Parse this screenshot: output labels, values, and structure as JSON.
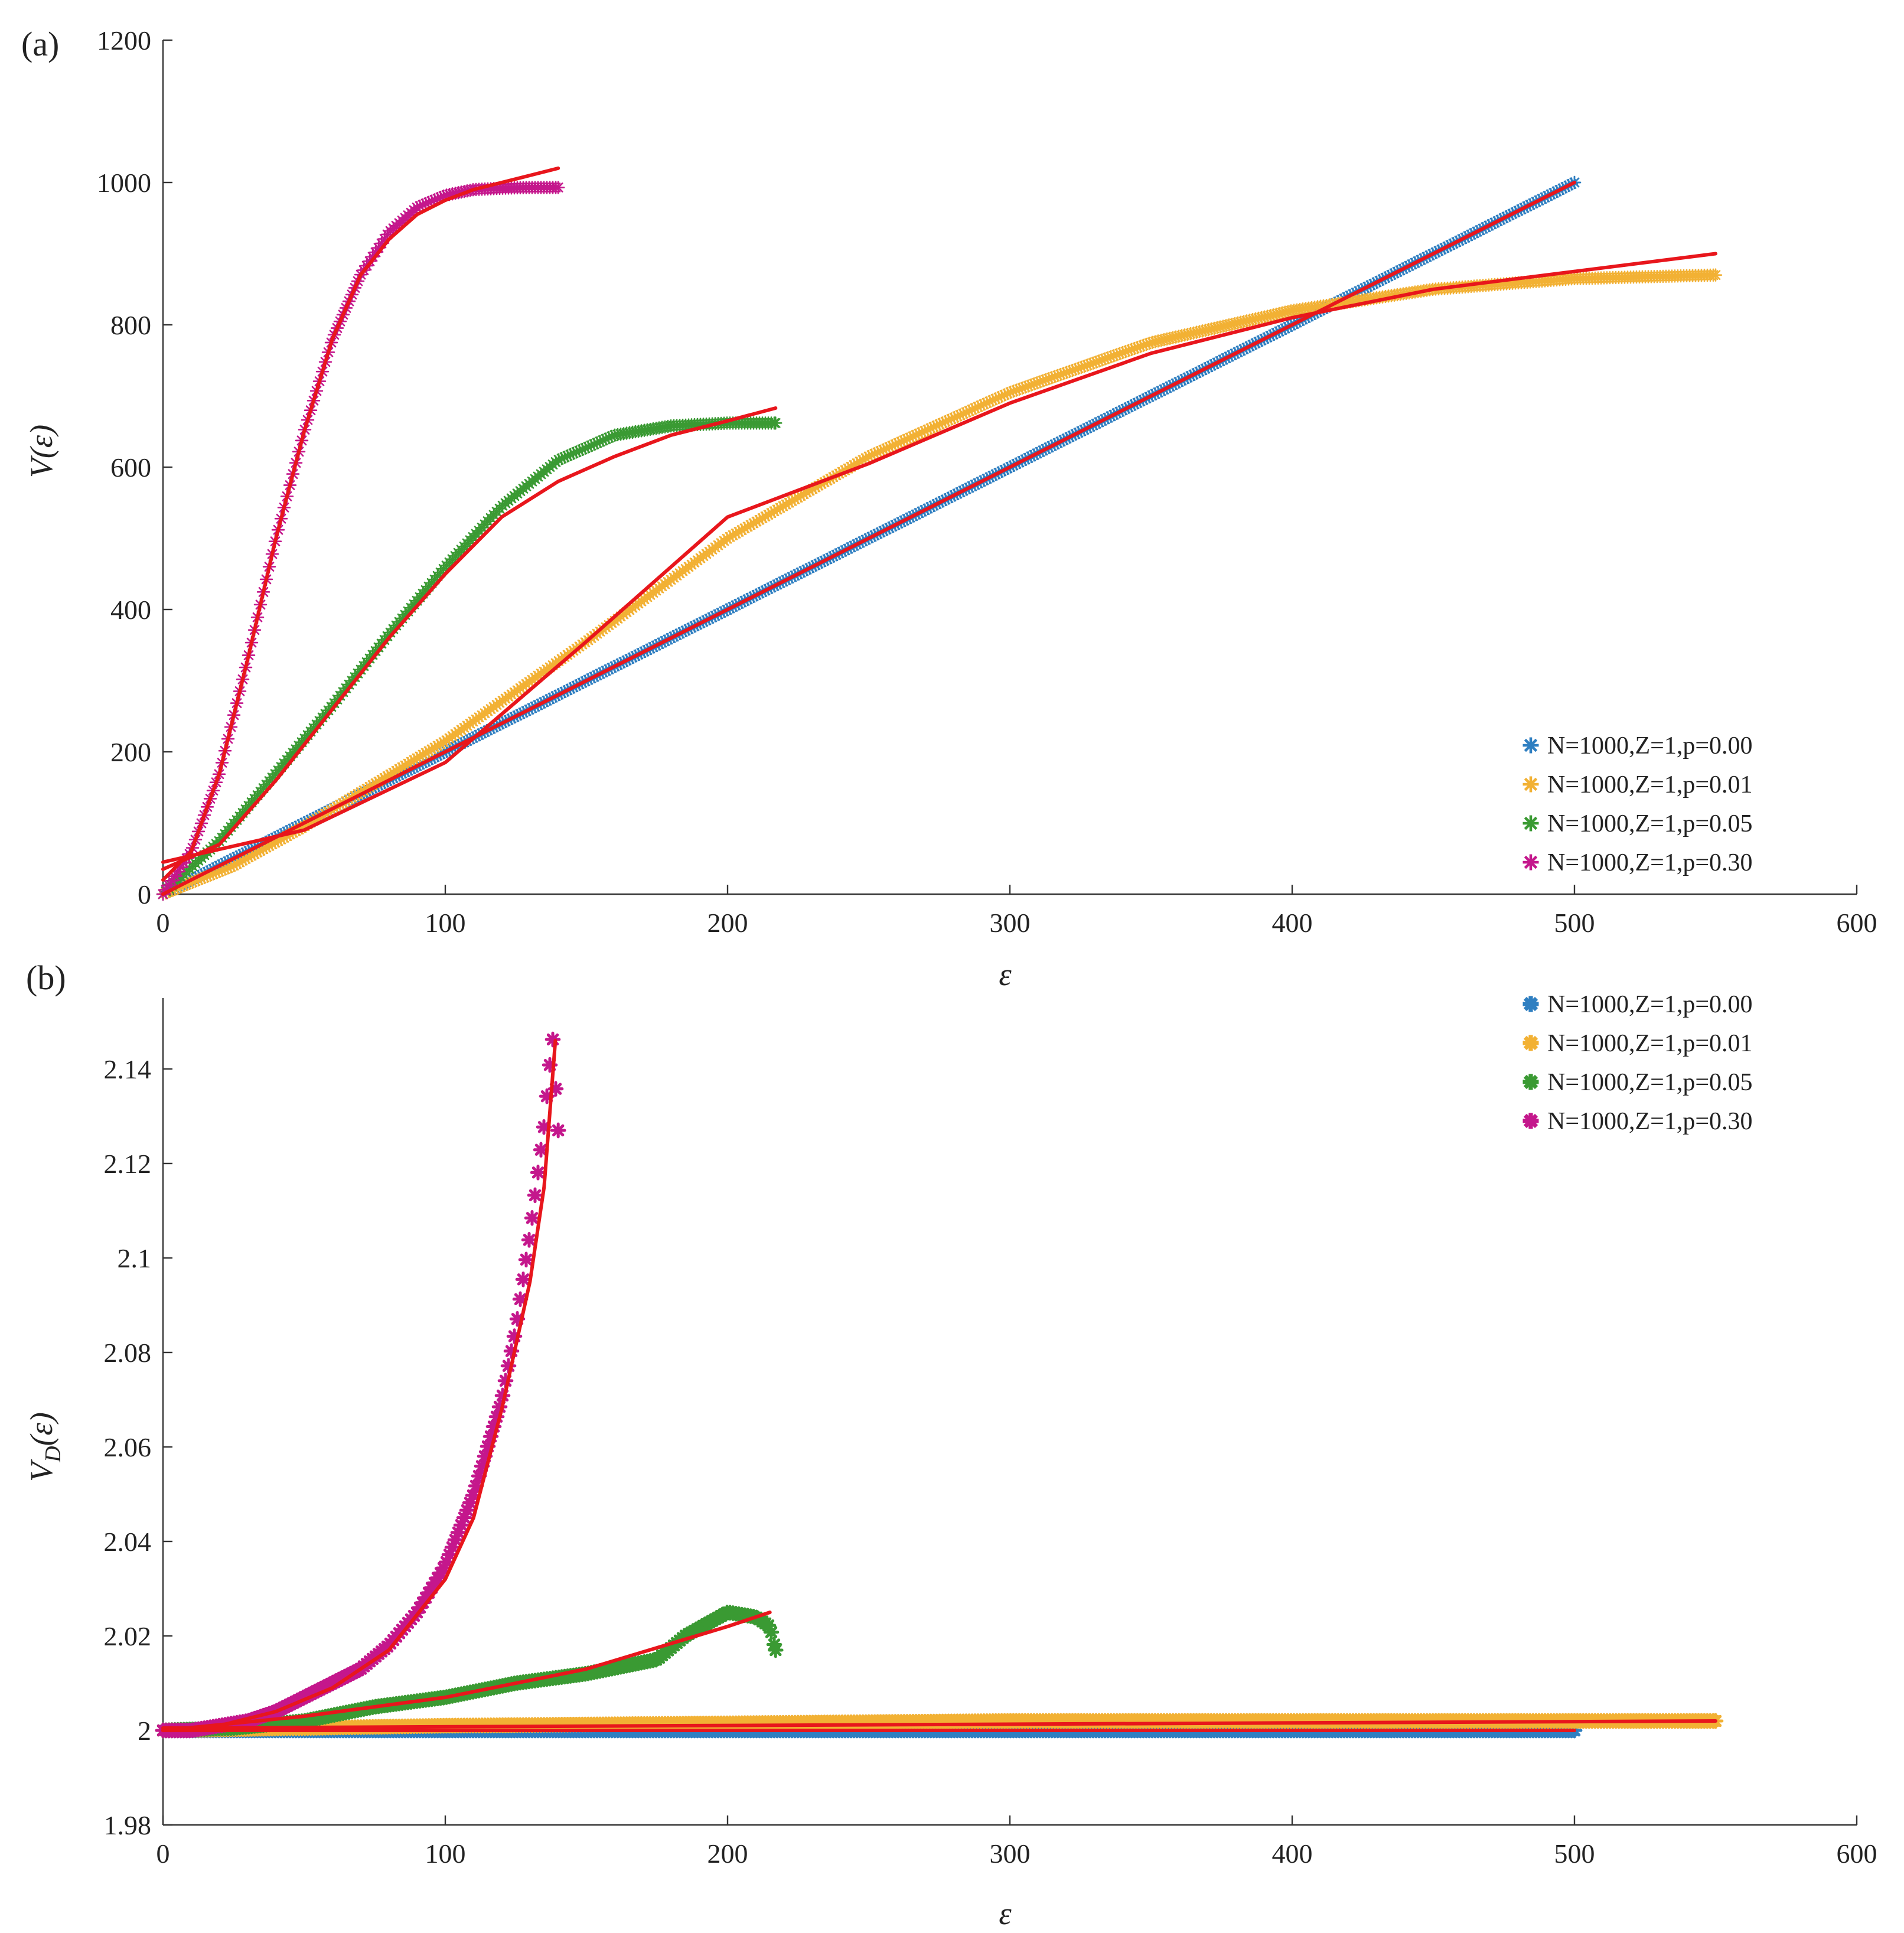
{
  "figure": {
    "title": ""
  },
  "colors": {
    "fit": "#e8161c",
    "p000": "#2f7fc1",
    "p001": "#f2b134",
    "p005": "#3a9a33",
    "p030": "#c4178c"
  },
  "chart_data": [
    {
      "id": "a",
      "panel_label": "(a)",
      "type": "scatter",
      "xlabel": "ε",
      "ylabel": "V(ε)",
      "xlim": [
        0,
        600
      ],
      "ylim": [
        0,
        1200
      ],
      "xticks": [
        0,
        100,
        200,
        300,
        400,
        500,
        600
      ],
      "yticks": [
        0,
        200,
        400,
        600,
        800,
        1000,
        1200
      ],
      "xtick_labels": [
        "0",
        "100",
        "200",
        "300",
        "400",
        "500",
        "600"
      ],
      "ytick_labels": [
        "0",
        "200",
        "400",
        "600",
        "800",
        "1000",
        "1200"
      ],
      "legend_position": "lower-right",
      "marker": "asterisk",
      "series": [
        {
          "name": "N=1000,Z=1,p=0.00",
          "color_key": "p000",
          "x_max": 500,
          "x": [
            0,
            100,
            200,
            300,
            400,
            500
          ],
          "y": [
            0,
            200,
            400,
            600,
            800,
            1000
          ]
        },
        {
          "name": "N=1000,Z=1,p=0.01",
          "color_key": "p001",
          "x_max": 550,
          "x": [
            0,
            25,
            50,
            75,
            100,
            150,
            200,
            250,
            300,
            350,
            400,
            450,
            500,
            550
          ],
          "y": [
            0,
            40,
            95,
            155,
            215,
            355,
            500,
            615,
            705,
            775,
            820,
            850,
            865,
            870
          ]
        },
        {
          "name": "N=1000,Z=1,p=0.05",
          "color_key": "p005",
          "x_max": 217,
          "x": [
            0,
            20,
            40,
            60,
            80,
            100,
            120,
            140,
            160,
            180,
            200,
            217
          ],
          "y": [
            0,
            75,
            170,
            265,
            365,
            460,
            545,
            610,
            645,
            658,
            662,
            662
          ]
        },
        {
          "name": "N=1000,Z=1,p=0.30",
          "color_key": "p030",
          "x_max": 140,
          "x": [
            0,
            10,
            20,
            30,
            40,
            50,
            60,
            70,
            80,
            90,
            100,
            110,
            120,
            130,
            140
          ],
          "y": [
            0,
            60,
            170,
            330,
            500,
            650,
            780,
            870,
            930,
            965,
            982,
            990,
            992,
            993,
            993
          ]
        }
      ],
      "fits": [
        {
          "x": [
            0,
            100,
            200,
            300,
            400,
            500
          ],
          "y": [
            0,
            200,
            400,
            600,
            800,
            1000
          ]
        },
        {
          "x": [
            0,
            50,
            100,
            150,
            200,
            250,
            300,
            350,
            400,
            450,
            500,
            550
          ],
          "y": [
            45,
            90,
            185,
            355,
            530,
            605,
            690,
            760,
            810,
            850,
            875,
            900
          ]
        },
        {
          "x": [
            0,
            20,
            40,
            60,
            80,
            100,
            120,
            140,
            160,
            180,
            200,
            217
          ],
          "y": [
            35,
            70,
            160,
            260,
            360,
            450,
            530,
            580,
            615,
            645,
            665,
            683
          ]
        },
        {
          "x": [
            0,
            10,
            20,
            30,
            40,
            50,
            60,
            70,
            80,
            90,
            100,
            110,
            120,
            130,
            140
          ],
          "y": [
            20,
            60,
            170,
            330,
            500,
            650,
            780,
            870,
            920,
            955,
            975,
            990,
            1000,
            1010,
            1020
          ]
        }
      ]
    },
    {
      "id": "b",
      "panel_label": "(b)",
      "type": "scatter",
      "xlabel": "ε",
      "ylabel_main": "V",
      "ylabel_sub": "D",
      "ylabel_tail": "(ε)",
      "xlim": [
        0,
        600
      ],
      "ylim": [
        1.98,
        2.155
      ],
      "xticks": [
        0,
        100,
        200,
        300,
        400,
        500,
        600
      ],
      "yticks": [
        1.98,
        2,
        2.02,
        2.04,
        2.06,
        2.08,
        2.1,
        2.12,
        2.14
      ],
      "xtick_labels": [
        "0",
        "100",
        "200",
        "300",
        "400",
        "500",
        "600"
      ],
      "ytick_labels": [
        "1.98",
        "2",
        "2.02",
        "2.04",
        "2.06",
        "2.08",
        "2.1",
        "2.12",
        "2.14"
      ],
      "legend_position": "top-right",
      "marker": "asterisk-bold",
      "series": [
        {
          "name": "N=1000,Z=1,p=0.00",
          "color_key": "p000",
          "x_max": 500,
          "x": [
            0,
            100,
            200,
            300,
            400,
            500
          ],
          "y": [
            2.0,
            2.0,
            2.0,
            2.0,
            2.0,
            2.0
          ]
        },
        {
          "name": "N=1000,Z=1,p=0.01",
          "color_key": "p001",
          "x_max": 550,
          "x": [
            0,
            100,
            200,
            300,
            400,
            500,
            550
          ],
          "y": [
            2.0,
            2.001,
            2.0015,
            2.002,
            2.002,
            2.002,
            2.002
          ]
        },
        {
          "name": "N=1000,Z=1,p=0.05",
          "color_key": "p005",
          "x_max": 217,
          "x": [
            0,
            25,
            50,
            75,
            100,
            125,
            150,
            175,
            185,
            200,
            210,
            215,
            217
          ],
          "y": [
            2.0,
            2.0005,
            2.002,
            2.005,
            2.007,
            2.01,
            2.012,
            2.015,
            2.02,
            2.025,
            2.024,
            2.022,
            2.017
          ]
        },
        {
          "name": "N=1000,Z=1,p=0.30",
          "color_key": "p030",
          "x_max": 140,
          "x": [
            0,
            10,
            20,
            30,
            40,
            50,
            60,
            70,
            80,
            90,
            100,
            110,
            120,
            125,
            130,
            135,
            138,
            140
          ],
          "y": [
            2.0,
            2.0,
            2.001,
            2.002,
            2.004,
            2.007,
            2.01,
            2.013,
            2.018,
            2.025,
            2.035,
            2.05,
            2.07,
            2.085,
            2.105,
            2.128,
            2.147,
            2.127
          ]
        }
      ],
      "fits": [
        {
          "x": [
            0,
            500
          ],
          "y": [
            2.0,
            2.0
          ]
        },
        {
          "x": [
            0,
            550
          ],
          "y": [
            2.0005,
            2.002
          ]
        },
        {
          "x": [
            0,
            50,
            100,
            150,
            200,
            215
          ],
          "y": [
            2.0,
            2.003,
            2.007,
            2.013,
            2.022,
            2.025
          ]
        },
        {
          "x": [
            0,
            20,
            40,
            60,
            80,
            100,
            110,
            120,
            130,
            135,
            139
          ],
          "y": [
            2.0,
            2.001,
            2.004,
            2.009,
            2.017,
            2.032,
            2.045,
            2.068,
            2.095,
            2.115,
            2.146
          ]
        }
      ]
    }
  ]
}
